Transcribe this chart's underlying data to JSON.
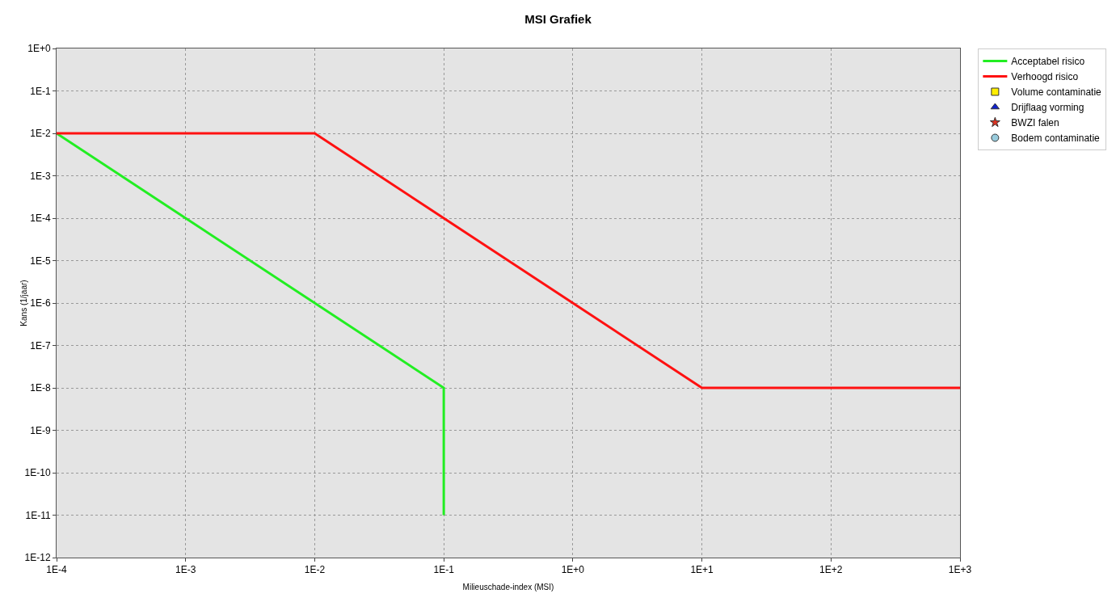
{
  "chart_data": {
    "type": "line",
    "title": "MSI Grafiek",
    "xlabel": "Milieuschade-index (MSI)",
    "ylabel": "Kans (1/jaar)",
    "log": "xy",
    "grid": true,
    "legend": "top right",
    "line_style": "solid",
    "marker": "none",
    "xlim": [
      0.0001,
      1000
    ],
    "ylim": [
      1e-12,
      1
    ],
    "xticks": [
      {
        "value": 0.0001,
        "label": "1E-4"
      },
      {
        "value": 0.001,
        "label": "1E-3"
      },
      {
        "value": 0.01,
        "label": "1E-2"
      },
      {
        "value": 0.1,
        "label": "1E-1"
      },
      {
        "value": 1,
        "label": "1E+0"
      },
      {
        "value": 10,
        "label": "1E+1"
      },
      {
        "value": 100,
        "label": "1E+2"
      },
      {
        "value": 1000,
        "label": "1E+3"
      }
    ],
    "yticks": [
      {
        "value": 1e-12,
        "label": "1E-12"
      },
      {
        "value": 1e-11,
        "label": "1E-11"
      },
      {
        "value": 1e-10,
        "label": "1E-10"
      },
      {
        "value": 1e-09,
        "label": "1E-9"
      },
      {
        "value": 1e-08,
        "label": "1E-8"
      },
      {
        "value": 1e-07,
        "label": "1E-7"
      },
      {
        "value": 1e-06,
        "label": "1E-6"
      },
      {
        "value": 1e-05,
        "label": "1E-5"
      },
      {
        "value": 0.0001,
        "label": "1E-4"
      },
      {
        "value": 0.001,
        "label": "1E-3"
      },
      {
        "value": 0.01,
        "label": "1E-2"
      },
      {
        "value": 0.1,
        "label": "1E-1"
      },
      {
        "value": 1,
        "label": "1E+0"
      }
    ],
    "series": [
      {
        "name": "Acceptabel risico",
        "color": "#22ee22",
        "x": [
          0.0001,
          0.001,
          0.01,
          0.1,
          0.1
        ],
        "values": [
          0.01,
          0.0001,
          1e-06,
          1e-08,
          1e-11
        ]
      },
      {
        "name": "Verhoogd risico",
        "color": "#ff1111",
        "x": [
          0.0001,
          0.01,
          0.1,
          1,
          10,
          1000
        ],
        "values": [
          0.01,
          0.01,
          0.0001,
          1e-06,
          1e-08,
          1e-08
        ]
      },
      {
        "name": "Volume contaminatie",
        "type": "scatter",
        "marker": "square",
        "color": "#ffee00"
      },
      {
        "name": "Drijflaag vorming",
        "type": "scatter",
        "marker": "triangle",
        "color": "#1122cc"
      },
      {
        "name": "BWZI falen",
        "type": "scatter",
        "marker": "star",
        "color": "#dd3322"
      },
      {
        "name": "Bodem contaminatie",
        "type": "scatter",
        "marker": "circle",
        "color": "#99ccdd"
      }
    ]
  }
}
